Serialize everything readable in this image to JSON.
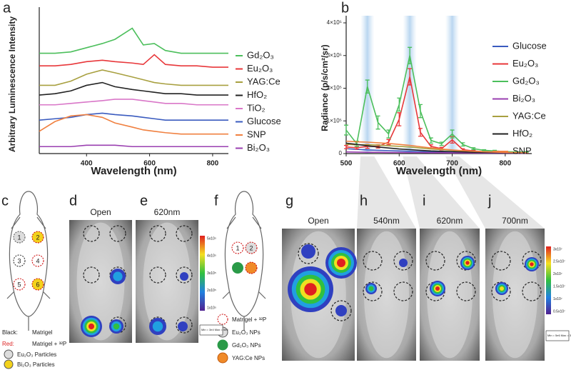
{
  "chart_data": [
    {
      "type": "line",
      "panel_label": "a",
      "x_label": "Wavelength (nm)",
      "y_label": "Arbitrary Luminescence Intensity",
      "x": [
        250,
        300,
        350,
        400,
        450,
        490,
        545,
        580,
        615,
        650,
        700,
        750,
        800,
        850
      ],
      "xlim": [
        250,
        850
      ],
      "xticks": [
        400,
        600,
        800
      ],
      "ylim": [
        0,
        10
      ],
      "series": [
        {
          "name": "Gd₂O₃",
          "color": "#4cbf5c",
          "values": [
            7.2,
            7.2,
            7.3,
            7.6,
            7.9,
            8.2,
            9.0,
            7.8,
            7.9,
            7.4,
            7.2,
            7.2,
            7.2,
            7.2
          ]
        },
        {
          "name": "Eu₂O₃",
          "color": "#e8373a",
          "values": [
            6.3,
            6.3,
            6.4,
            6.6,
            6.7,
            6.6,
            6.5,
            6.4,
            7.1,
            6.4,
            6.3,
            6.3,
            6.2,
            6.2
          ]
        },
        {
          "name": "YAG:Ce",
          "color": "#a8a040",
          "values": [
            4.9,
            4.9,
            5.2,
            5.7,
            6.0,
            5.8,
            5.5,
            5.3,
            5.1,
            5.0,
            4.9,
            4.9,
            4.9,
            4.9
          ]
        },
        {
          "name": "HfO₂",
          "color": "#222222",
          "values": [
            4.2,
            4.3,
            4.5,
            4.9,
            5.1,
            4.8,
            4.6,
            4.5,
            4.4,
            4.3,
            4.3,
            4.2,
            4.2,
            4.2
          ]
        },
        {
          "name": "TiO₂",
          "color": "#d977c8",
          "values": [
            3.5,
            3.5,
            3.6,
            3.7,
            3.8,
            3.9,
            3.9,
            3.8,
            3.7,
            3.6,
            3.6,
            3.5,
            3.5,
            3.5
          ]
        },
        {
          "name": "Glucose",
          "color": "#3a5bbf",
          "values": [
            2.4,
            2.5,
            2.6,
            2.8,
            2.9,
            2.8,
            2.7,
            2.6,
            2.5,
            2.4,
            2.4,
            2.4,
            2.4,
            2.4
          ]
        },
        {
          "name": "SNP",
          "color": "#f08040",
          "values": [
            1.6,
            2.3,
            2.7,
            2.8,
            2.6,
            2.2,
            1.9,
            1.7,
            1.6,
            1.5,
            1.4,
            1.4,
            1.4,
            1.4
          ]
        },
        {
          "name": "Bi₂O₃",
          "color": "#9a3fb0",
          "values": [
            0.5,
            0.5,
            0.5,
            0.6,
            0.6,
            0.6,
            0.5,
            0.5,
            0.5,
            0.5,
            0.5,
            0.5,
            0.5,
            0.5
          ]
        }
      ]
    },
    {
      "type": "line",
      "panel_label": "b",
      "x_label": "Wavelength (nm)",
      "y_label": "Radiance (p/s/cm²/sr)",
      "x": [
        500,
        520,
        540,
        560,
        580,
        600,
        620,
        640,
        660,
        680,
        700,
        720,
        740,
        760,
        780,
        800,
        820,
        840
      ],
      "xlim": [
        500,
        850
      ],
      "xticks": [
        500,
        600,
        700,
        800
      ],
      "ylim": [
        0,
        400000
      ],
      "yticks": [
        0,
        {
          "value": 100000,
          "label": "1×10⁵"
        },
        {
          "value": 200000,
          "label": "2×10⁵"
        },
        {
          "value": 300000,
          "label": "3×10⁵"
        },
        {
          "value": 400000,
          "label": "4×10⁵"
        }
      ],
      "highlight_bands": [
        540,
        620,
        700
      ],
      "series": [
        {
          "name": "Glucose",
          "color": "#3a5bbf",
          "values": [
            15000,
            13000,
            11000,
            10000,
            9000,
            8000,
            7000,
            6000,
            5000,
            4500,
            4000,
            3500,
            3000,
            2500,
            2000,
            2000,
            1500,
            1500
          ]
        },
        {
          "name": "Eu₂O₃",
          "color": "#e8373a",
          "values": [
            20000,
            18000,
            22000,
            22000,
            35000,
            105000,
            235000,
            65000,
            22000,
            15000,
            42000,
            12000,
            8000,
            6000,
            5000,
            4000,
            4000,
            3000
          ],
          "errors": [
            5000,
            4000,
            6000,
            5000,
            8000,
            20000,
            25000,
            12000,
            5000,
            4000,
            10000,
            3000,
            2000,
            1000,
            1000,
            1000,
            1000,
            1000
          ]
        },
        {
          "name": "Gd₂O₃",
          "color": "#4cbf5c",
          "values": [
            72000,
            30000,
            205000,
            95000,
            60000,
            150000,
            300000,
            130000,
            40000,
            30000,
            60000,
            28000,
            15000,
            10000,
            8000,
            6000,
            5000,
            5000
          ],
          "errors": [
            15000,
            8000,
            20000,
            20000,
            12000,
            20000,
            25000,
            20000,
            8000,
            5000,
            12000,
            5000,
            3000,
            2000,
            2000,
            1000,
            1000,
            1000
          ]
        },
        {
          "name": "Bi₂O₃",
          "color": "#9a3fb0",
          "values": [
            5000,
            4500,
            4000,
            4000,
            3500,
            3500,
            3000,
            3000,
            2500,
            2500,
            2000,
            2000,
            2000,
            1500,
            1500,
            1500,
            1000,
            1000
          ]
        },
        {
          "name": "YAG:Ce",
          "color": "#a8a040",
          "values": [
            28000,
            27000,
            27000,
            26000,
            24000,
            22000,
            20000,
            17000,
            14000,
            12000,
            10000,
            8000,
            6500,
            5500,
            4500,
            4000,
            3500,
            3000
          ]
        },
        {
          "name": "HfO₂",
          "color": "#222222",
          "values": [
            32000,
            28000,
            24000,
            20000,
            17000,
            14000,
            12000,
            10000,
            8000,
            7000,
            6000,
            5000,
            4000,
            3500,
            3000,
            2500,
            2000,
            2000
          ]
        },
        {
          "name": "SNP",
          "color": "#f08040",
          "values": [
            38000,
            36000,
            35000,
            33000,
            31000,
            28000,
            25000,
            21000,
            17000,
            14000,
            11000,
            9000,
            7000,
            5500,
            4500,
            3500,
            3000,
            2500
          ]
        }
      ]
    }
  ],
  "image_panels": {
    "c": {
      "label": "c",
      "regions": [
        "1",
        "2",
        "3",
        "4",
        "5",
        "6"
      ],
      "legend": [
        {
          "key": "Black:",
          "text": "Matrigel"
        },
        {
          "key": "Red:",
          "text": "Matrigel + ³²P"
        },
        {
          "text": "Eu₂O₃ Particles"
        },
        {
          "text": "Bi₂O₃ Particles"
        }
      ]
    },
    "d": {
      "label": "d",
      "title": "Open"
    },
    "e": {
      "label": "e",
      "title": "620nm",
      "colorbar_ticks": [
        "5x10⁵",
        "4x10⁵",
        "3x10⁵",
        "2x10⁵",
        "1x10⁵"
      ],
      "colorbar_note": "Min = 3e4 Max = 5e5"
    },
    "f": {
      "label": "f",
      "regions": [
        "1",
        "2"
      ],
      "legend": [
        "Matrigel + ³²P",
        "Eu₂O₃ NPs",
        "Gd₂O₃ NPs",
        "YAG:Ce NPs"
      ]
    },
    "g": {
      "label": "g",
      "title": "Open"
    },
    "h": {
      "label": "h",
      "title": "540nm"
    },
    "i": {
      "label": "i",
      "title": "620nm"
    },
    "j": {
      "label": "j",
      "title": "700nm",
      "colorbar_ticks": [
        "3x10⁷",
        "2.5x10⁷",
        "2x10⁷",
        "1.5x10⁷",
        "1x10⁷",
        "0.5x10⁷"
      ],
      "colorbar_note": "Min = 5e6 Max = 3e7"
    }
  }
}
